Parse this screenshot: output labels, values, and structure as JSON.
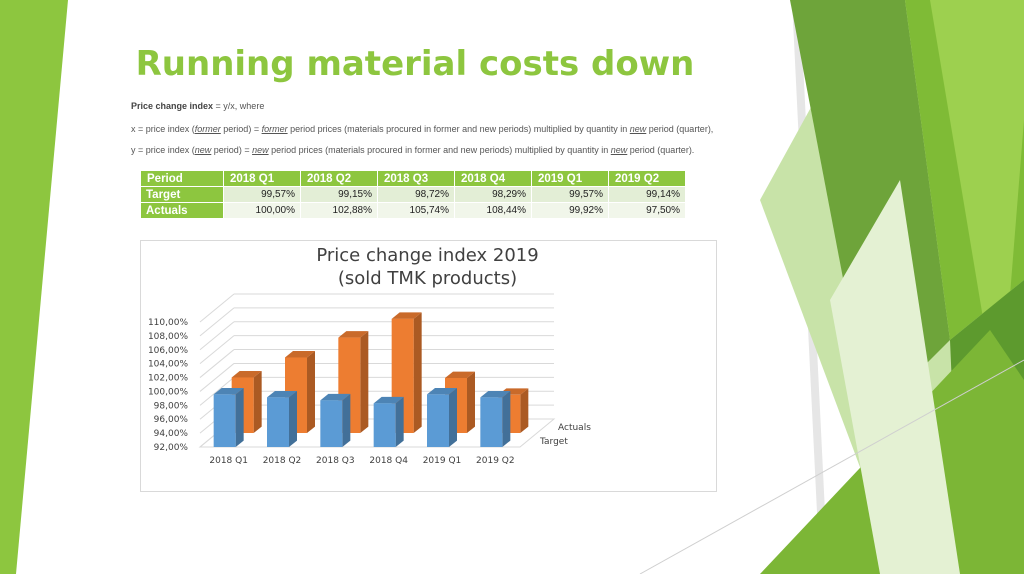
{
  "slide": {
    "title": "Running material costs down",
    "definition": {
      "label": "Price change index",
      "formula": " = y/x, where",
      "x_line": {
        "p1": "x = price index (",
        "former1": "former",
        "p2": " period) = ",
        "former2": "former",
        "p3": " period prices (materials procured in former and new periods) multiplied by quantity in ",
        "new1": "new",
        "p4": " period (quarter),"
      },
      "y_line": {
        "p1": "y = price index (",
        "new1": "new",
        "p2": " period) = ",
        "new2": "new",
        "p3": " period prices (materials procured in former and new periods) multiplied by quantity in ",
        "new3": "new",
        "p4": " period (quarter)."
      }
    }
  },
  "table": {
    "header": [
      "Period",
      "2018 Q1",
      "2018 Q2",
      "2018 Q3",
      "2018 Q4",
      "2019 Q1",
      "2019 Q2"
    ],
    "rows": [
      {
        "label": "Target",
        "cells": [
          "99,57%",
          "99,15%",
          "98,72%",
          "98,29%",
          "99,57%",
          "99,14%"
        ]
      },
      {
        "label": "Actuals",
        "cells": [
          "100,00%",
          "102,88%",
          "105,74%",
          "108,44%",
          "99,92%",
          "97,50%"
        ]
      }
    ]
  },
  "colors": {
    "accent": "#8dc63f",
    "target": "#5b9bd5",
    "actuals": "#ed7d31"
  },
  "chart_data": {
    "type": "bar",
    "title_line1": "Price change index 2019",
    "title_line2": "(sold TMK products)",
    "categories": [
      "2018 Q1",
      "2018 Q2",
      "2018 Q3",
      "2018 Q4",
      "2019 Q1",
      "2019 Q2"
    ],
    "series": [
      {
        "name": "Target",
        "values": [
          99.57,
          99.15,
          98.72,
          98.29,
          99.57,
          99.14
        ]
      },
      {
        "name": "Actuals",
        "values": [
          100.0,
          102.88,
          105.74,
          108.44,
          99.92,
          97.5
        ]
      }
    ],
    "ylim": [
      92,
      110
    ],
    "yticks": [
      "92,00%",
      "94,00%",
      "96,00%",
      "98,00%",
      "100,00%",
      "102,00%",
      "104,00%",
      "106,00%",
      "108,00%",
      "110,00%"
    ],
    "legend": "depth-axis labels (right)"
  }
}
